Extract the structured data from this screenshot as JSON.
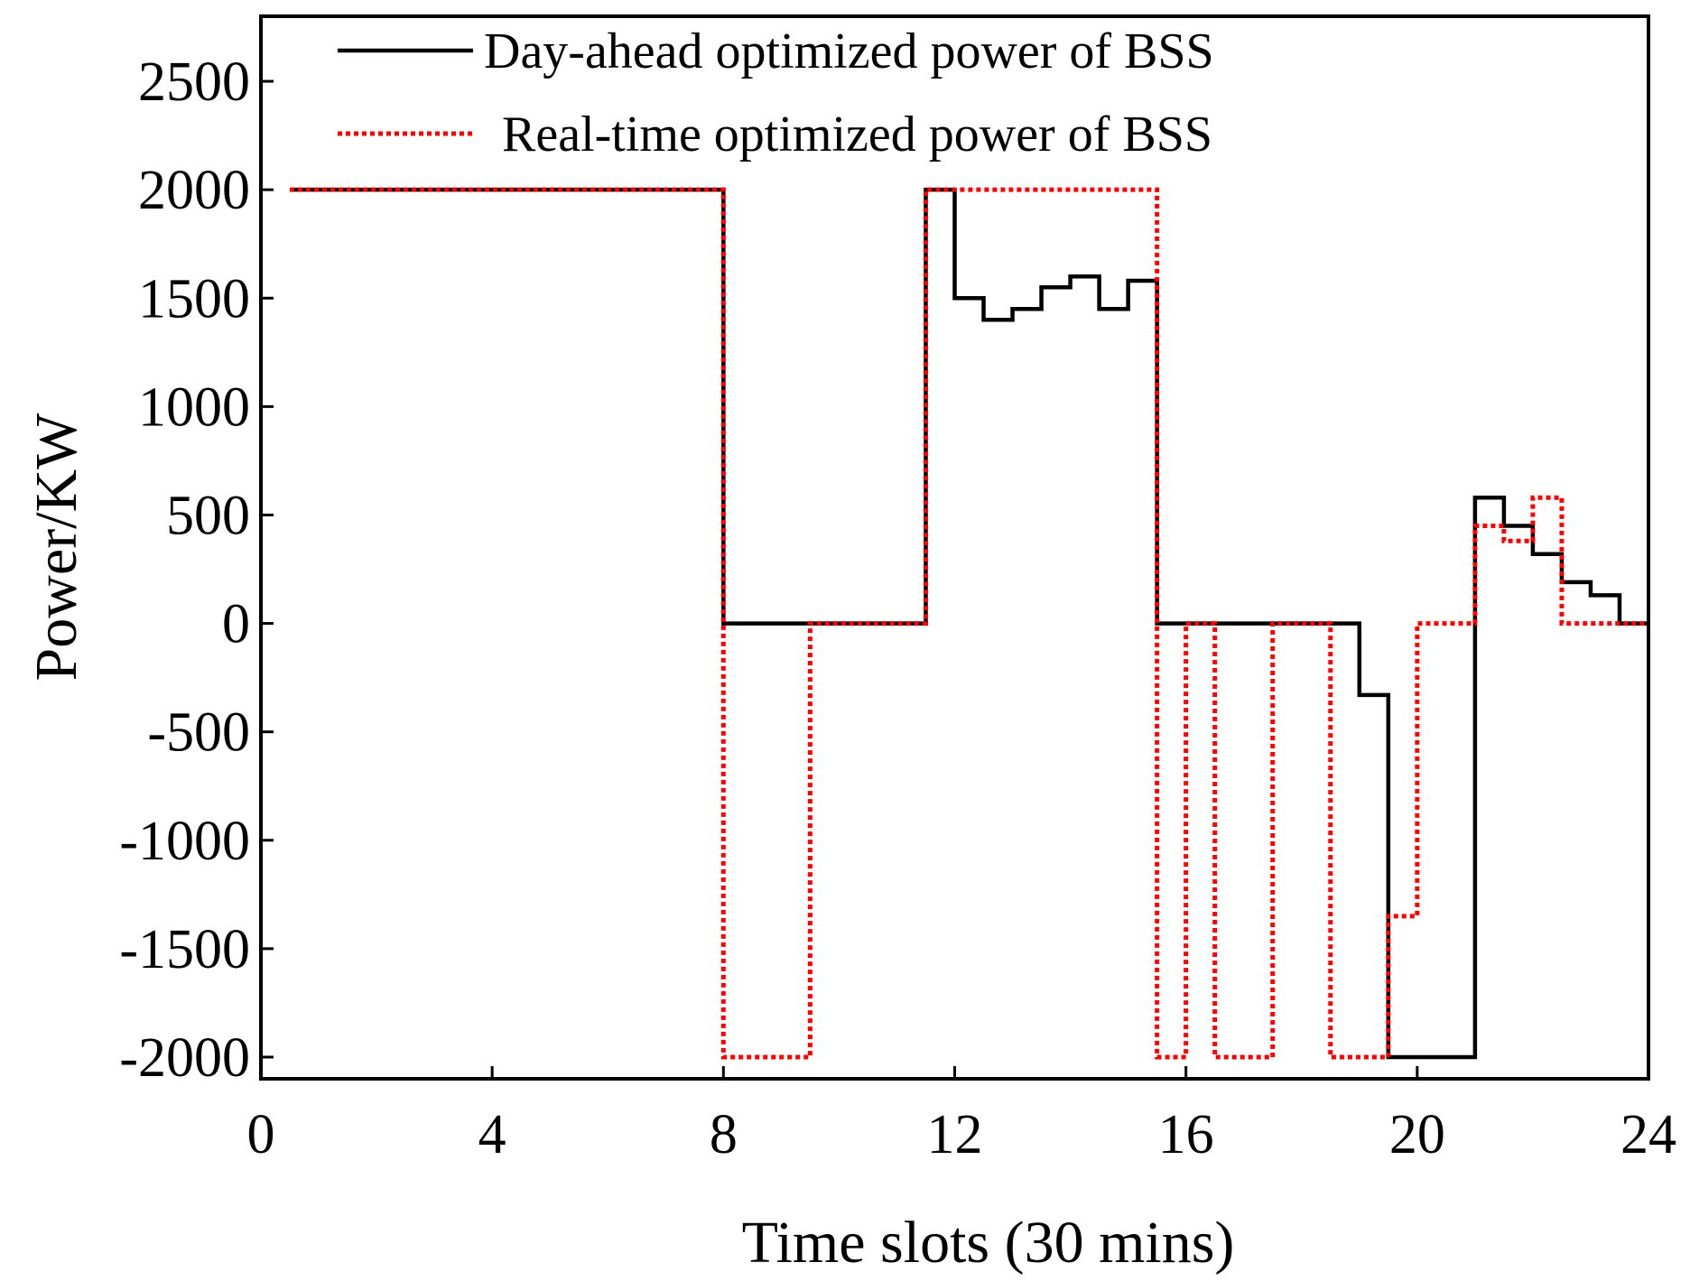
{
  "chart_data": {
    "type": "line",
    "title": "",
    "xlabel": "Time slots (30 mins)",
    "ylabel": "Power/KW",
    "xlim": [
      0,
      24
    ],
    "ylim": [
      -2100,
      2800
    ],
    "xticks": [
      0,
      4,
      8,
      12,
      16,
      20,
      24
    ],
    "xtick_labels": [
      "0",
      "4",
      "8",
      "12",
      "16",
      "20",
      "24"
    ],
    "yticks": [
      2500,
      2000,
      1500,
      1000,
      500,
      0,
      -500,
      -1000,
      -1500,
      -2000
    ],
    "ytick_labels": [
      "2500",
      "2000",
      "1500",
      "1000",
      "500",
      "0",
      "-500",
      "-1000",
      "-1500",
      "-2000"
    ],
    "grid": false,
    "legend_position": "top-center",
    "series": [
      {
        "name": "Day-ahead optimized power of BSS",
        "color": "#000000",
        "style": "solid",
        "step": "post",
        "x": [
          0.5,
          8,
          11.5,
          12,
          12.5,
          13,
          13.5,
          14,
          14.5,
          15,
          15.5,
          19,
          19.5,
          21,
          21.5,
          22,
          22.5,
          23,
          23.5,
          24
        ],
        "y": [
          2000,
          0,
          2000,
          1500,
          1400,
          1450,
          1550,
          1600,
          1450,
          1580,
          0,
          -330,
          -2000,
          580,
          450,
          320,
          190,
          130,
          0,
          0
        ]
      },
      {
        "name": "Real-time optimized power of BSS",
        "color": "#ff0000",
        "style": "dotted",
        "step": "post",
        "x": [
          0.5,
          8,
          9.5,
          11.5,
          15.5,
          16,
          16.5,
          17.5,
          18.5,
          19.5,
          20,
          21,
          21.5,
          22,
          22.5,
          24
        ],
        "y": [
          2000,
          -2000,
          0,
          2000,
          -2000,
          0,
          -2000,
          0,
          -2000,
          -1350,
          0,
          450,
          380,
          580,
          0,
          0
        ]
      }
    ]
  }
}
